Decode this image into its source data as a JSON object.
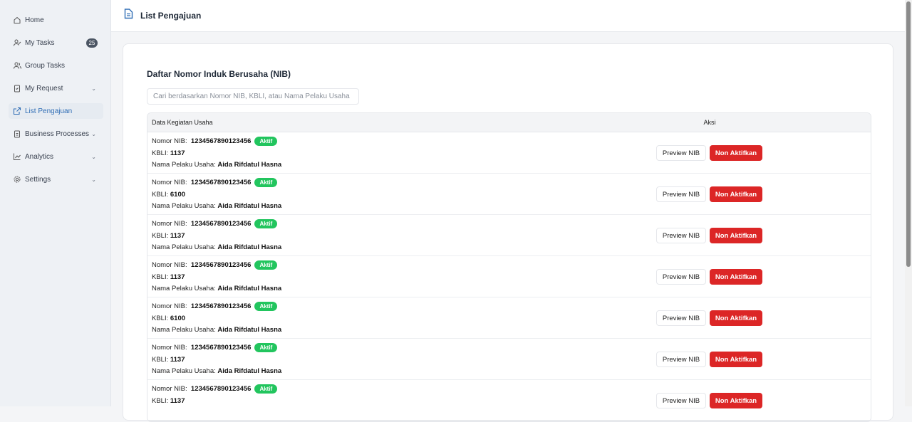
{
  "sidebar": {
    "items": [
      {
        "label": "Home",
        "icon": "home-icon"
      },
      {
        "label": "My Tasks",
        "icon": "user-check-icon",
        "badge": "25"
      },
      {
        "label": "Group Tasks",
        "icon": "users-icon"
      },
      {
        "label": "My Request",
        "icon": "clipboard-icon",
        "chevron": true
      },
      {
        "label": "List Pengajuan",
        "icon": "external-link-icon",
        "active": true
      },
      {
        "label": "Business Processes",
        "icon": "clipboard-list-icon",
        "chevron": true
      },
      {
        "label": "Analytics",
        "icon": "chart-line-icon",
        "chevron": true
      },
      {
        "label": "Settings",
        "icon": "gear-icon",
        "chevron": true
      }
    ]
  },
  "header": {
    "title": "List Pengajuan",
    "icon": "document-icon"
  },
  "main": {
    "title": "Daftar Nomor Induk Berusaha (NIB)",
    "search_placeholder": "Cari berdasarkan Nomor NIB, KBLI, atau Nama Pelaku Usaha",
    "columns": [
      "Data Kegiatan Usaha",
      "Aksi"
    ],
    "labels": {
      "nib": "Nomor NIB:",
      "kbli": "KBLI:",
      "nama": "Nama Pelaku Usaha:",
      "preview": "Preview NIB",
      "non": "Non Aktifkan"
    },
    "rows": [
      {
        "nib": "1234567890123456",
        "status": "Aktif",
        "kbli": "1137",
        "nama": "Aida Rifdatul Hasna"
      },
      {
        "nib": "1234567890123456",
        "status": "Aktif",
        "kbli": "6100",
        "nama": "Aida Rifdatul Hasna"
      },
      {
        "nib": "1234567890123456",
        "status": "Aktif",
        "kbli": "1137",
        "nama": "Aida Rifdatul Hasna"
      },
      {
        "nib": "1234567890123456",
        "status": "Aktif",
        "kbli": "1137",
        "nama": "Aida Rifdatul Hasna"
      },
      {
        "nib": "1234567890123456",
        "status": "Aktif",
        "kbli": "6100",
        "nama": "Aida Rifdatul Hasna"
      },
      {
        "nib": "1234567890123456",
        "status": "Aktif",
        "kbli": "1137",
        "nama": "Aida Rifdatul Hasna"
      },
      {
        "nib": "1234567890123456",
        "status": "Aktif",
        "kbli": "1137",
        "nama": ""
      }
    ]
  },
  "colors": {
    "accent": "#2f6db5",
    "aktif": "#22c55e",
    "danger": "#dc2626"
  }
}
